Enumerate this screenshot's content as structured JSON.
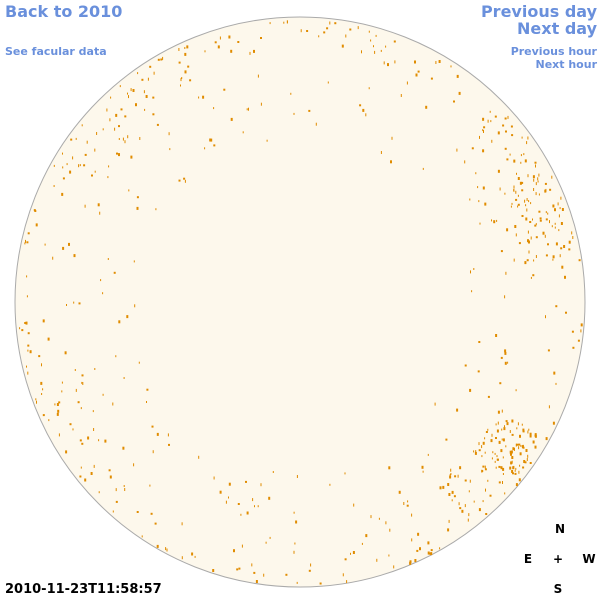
{
  "header": {
    "back": "Back to 2010",
    "facular": "See facular data",
    "previous_day": "Previous day",
    "next_day": "Next day",
    "previous_hour": "Previous hour",
    "next_hour": "Next hour"
  },
  "timestamp": "2010-11-23T11:58:57",
  "compass": {
    "north": "N",
    "east": "E",
    "center": "+",
    "west": "W",
    "south": "S"
  }
}
